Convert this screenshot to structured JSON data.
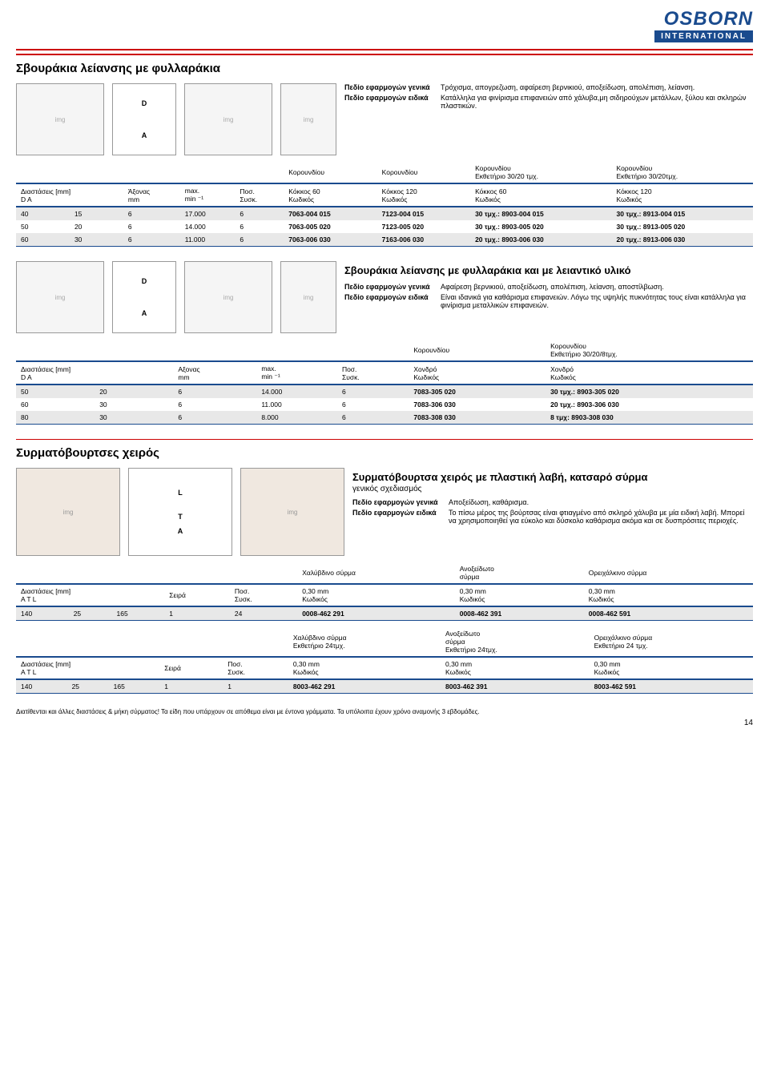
{
  "logo": {
    "top": "OSBORN",
    "bottom": "INTERNATIONAL"
  },
  "s1": {
    "title": "Σβουράκια λείανσης με φυλλαράκια",
    "app_gen_l": "Πεδίο εφαρμογών γενικά",
    "app_gen_v": "Τρόχισμα, απογρεζωση, αφαίρεση βερνικιού, αποξείδωση, απολέπιση, λείανση.",
    "app_spe_l": "Πεδίο εφαρμογών ειδικά",
    "app_spe_v": "Κατάλληλα για φινίρισμα επιφανειών από χάλυβα,μη σιδηρούχων μετάλλων, ξύλου και σκληρών πλαστικών.",
    "h1": [
      "",
      "",
      "Κορουνδίου",
      "Κορουνδίου",
      "Κορουνδίου\nΕκθετήριο 30/20 τμχ.",
      "Κορουνδίου\nΕκθετήριο 30/20τμχ."
    ],
    "h2": [
      "Διαστάσεις [mm]\nD    A",
      "Άξονας\nmm",
      "max.\nmin ⁻¹",
      "Ποσ.\nΣυσκ.",
      "Κόκκος 60\nΚωδικός",
      "Κόκκος 120\nΚωδικός",
      "Κόκκος 60\nΚωδικός",
      "Κόκκος 120\nΚωδικός"
    ],
    "rows": [
      [
        "40",
        "15",
        "6",
        "17.000",
        "6",
        "7063-004 015",
        "7123-004 015",
        "30 τμχ.: 8903-004 015",
        "30 τμχ.: 8913-004 015"
      ],
      [
        "50",
        "20",
        "6",
        "14.000",
        "6",
        "7063-005 020",
        "7123-005 020",
        "30 τμχ.: 8903-005 020",
        "30 τμχ.: 8913-005 020"
      ],
      [
        "60",
        "30",
        "6",
        "11.000",
        "6",
        "7063-006 030",
        "7163-006 030",
        "20 τμχ.: 8903-006 030",
        "20 τμχ.: 8913-006 030"
      ]
    ]
  },
  "s2": {
    "title": "Σβουράκια λείανσης με φυλλαράκια και με λειαντικό υλικό",
    "app_gen_l": "Πεδίο εφαρμογών γενικά",
    "app_gen_v": "Αφαίρεση βερνικιού, αποξείδωση, απολέπιση, λείανση, αποστίλβωση.",
    "app_spe_l": "Πεδίο εφαρμογών ειδικά",
    "app_spe_v": "Είναι ιδανικά για καθάρισμα επιφανειών. Λόγω της υψηλής πυκνότητας τους είναι κατάλληλα για φινίρισμα μεταλλικών επιφανειών.",
    "h1": [
      "",
      "",
      "",
      "Κορουνδίου",
      "Κορουνδίου\nΕκθετήριο 30/20/8τμχ."
    ],
    "h2": [
      "Διαστάσεις [mm]\nD    A",
      "Αξονας\nmm",
      "max.\nmin ⁻¹",
      "Ποσ.\nΣυσκ.",
      "Χονδρό\nΚωδικός",
      "Χονδρό\nΚωδικός"
    ],
    "rows": [
      [
        "50",
        "20",
        "6",
        "14.000",
        "6",
        "7083-305 020",
        "30 τμχ.: 8903-305 020"
      ],
      [
        "60",
        "30",
        "6",
        "11.000",
        "6",
        "7083-306 030",
        "20 τμχ.: 8903-306 030"
      ],
      [
        "80",
        "30",
        "6",
        "8.000",
        "6",
        "7083-308 030",
        "8 τμχ: 8903-308 030"
      ]
    ]
  },
  "s3": {
    "title": "Συρματόβουρτσες χειρός",
    "subtitle": "Συρματόβουρτσα χειρός με πλαστική λαβή, κατσαρό σύρμα",
    "sub2": "γενικός σχεδιασμός",
    "app_gen_l": "Πεδίο εφαρμογών γενικά",
    "app_gen_v": "Αποξείδωση, καθάρισμα.",
    "app_spe_l": "Πεδίο εφαρμογών ειδικά",
    "app_spe_v": "Το πίσω μέρος της βούρτσας είναι φτιαγμένο από σκληρό χάλυβα με μία ειδική λαβή. Μπορεί να χρησιμοποιηθεί για εύκολο και δύσκολο καθάρισμα ακόμα και σε δυσπρόσιτες περιοχές.",
    "t1": {
      "h1": [
        "",
        "",
        "Χαλύβδινο σύρμα",
        "Ανοξείδωτο\nσύρμα",
        "Ορειχάλκινο σύρμα"
      ],
      "h2": [
        "Διαστάσεις [mm]\nA    T    L",
        "Σειρά",
        "Ποσ.\nΣυσκ.",
        "0,30 mm\nΚωδικός",
        "0,30 mm\nΚωδικός",
        "0,30 mm\nΚωδικός"
      ],
      "rows": [
        [
          "140",
          "25",
          "165",
          "1",
          "24",
          "0008-462 291",
          "0008-462 391",
          "0008-462 591"
        ]
      ]
    },
    "t2": {
      "h1": [
        "",
        "",
        "Χαλύβδινο σύρμα\nΕκθετήριο 24τμχ.",
        "Ανοξείδωτο\nσύρμα\nΕκθετήριο 24τμχ.",
        "Ορειχάλκινο σύρμα\nΕκθετήριο 24 τμχ."
      ],
      "h2": [
        "Διαστάσεις [mm]\nA    T    L",
        "Σειρά",
        "Ποσ.\nΣυσκ.",
        "0,30 mm\nΚωδικός",
        "0,30 mm\nΚωδικός",
        "0,30 mm\nΚωδικός"
      ],
      "rows": [
        [
          "140",
          "25",
          "165",
          "1",
          "1",
          "8003-462 291",
          "8003-462 391",
          "8003-462 591"
        ]
      ]
    }
  },
  "footnote": "Διατίθενται και άλλες διαστάσεις & μήκη σύρματος! Τα είδη που υπάρχουν σε απόθεμα είναι με έντονα γράμματα. Τα υπόλοιπα έχουν χρόνο αναμονής 3 εβδομάδες.",
  "page": "14"
}
